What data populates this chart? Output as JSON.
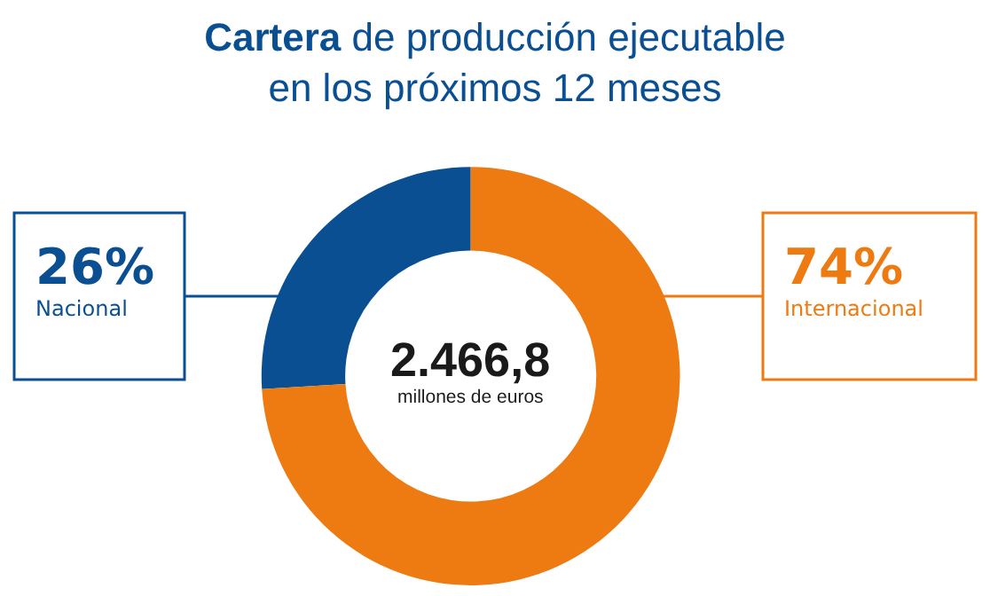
{
  "chart_data": {
    "type": "donut",
    "title": "Cartera de producción ejecutable en los próximos 12 meses",
    "categories": [
      "Nacional",
      "Internacional"
    ],
    "values": [
      26,
      74
    ],
    "value_labels": [
      "26%",
      "74%"
    ],
    "colors": [
      "#0b4f93",
      "#ee7a12"
    ],
    "annotations": [
      "2.466,8",
      "millones de euros"
    ],
    "legend": false
  }
}
